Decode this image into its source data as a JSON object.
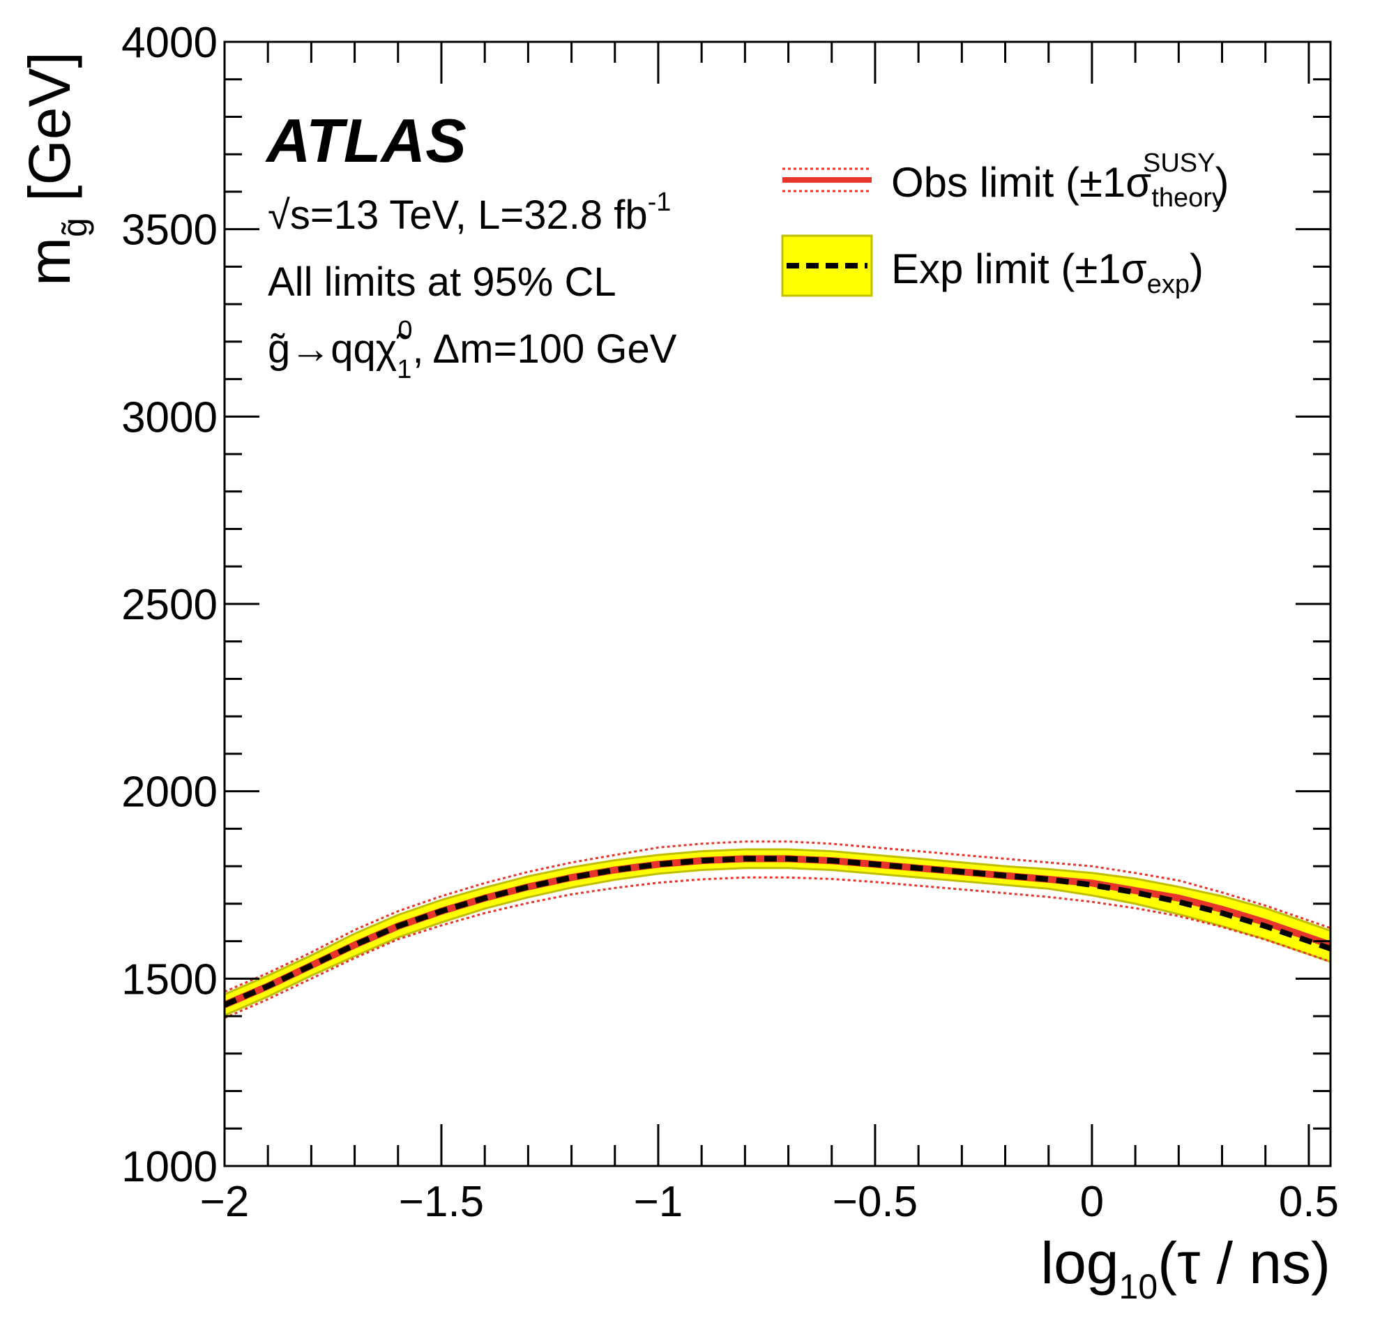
{
  "chart_data": {
    "type": "line",
    "experiment": "ATLAS",
    "xlabel": {
      "main": "log",
      "sub": "10",
      "rest": "(τ / ns)"
    },
    "ylabel": {
      "main": "m",
      "sub": "g̃",
      "rest": " [GeV]"
    },
    "xlim": [
      -2,
      0.55
    ],
    "ylim": [
      1000,
      4000
    ],
    "x_ticks": [
      {
        "value": -2,
        "label": "−2"
      },
      {
        "value": -1.5,
        "label": "−1.5"
      },
      {
        "value": -1,
        "label": "−1"
      },
      {
        "value": -0.5,
        "label": "−0.5"
      },
      {
        "value": 0,
        "label": "0"
      },
      {
        "value": 0.5,
        "label": "0.5"
      }
    ],
    "y_ticks": [
      {
        "value": 1000,
        "label": "1000"
      },
      {
        "value": 1500,
        "label": "1500"
      },
      {
        "value": 2000,
        "label": "2000"
      },
      {
        "value": 2500,
        "label": "2500"
      },
      {
        "value": 3000,
        "label": "3000"
      },
      {
        "value": 3500,
        "label": "3500"
      },
      {
        "value": 4000,
        "label": "4000"
      }
    ],
    "x_minor_step": 0.1,
    "y_minor_step": 100,
    "annotations": {
      "energy_prefix": "√",
      "energy_rest": "s=13 TeV, L=32.8 fb",
      "energy_sup": "-1",
      "cl": "All limits at 95% CL",
      "decay_main": "g̃→qqχ̃",
      "decay_sub": "1",
      "decay_sup": "0",
      "decay_rest": ", Δm=100 GeV"
    },
    "legend": {
      "placement": "top-right",
      "obs": {
        "main": "Obs limit (±1σ",
        "sub": "theory",
        "sup": "SUSY",
        "close": ")"
      },
      "exp": {
        "main": "Exp limit (±1σ",
        "sub": "exp",
        "close": ")"
      }
    },
    "colors": {
      "obs": "#e8352c",
      "obs_band": "#e8352c",
      "exp": "#000000",
      "exp_band": "#ffff00",
      "exp_band_edge": "#bfbf00"
    },
    "x": [
      -2.0,
      -1.9,
      -1.8,
      -1.7,
      -1.6,
      -1.5,
      -1.4,
      -1.3,
      -1.2,
      -1.1,
      -1.0,
      -0.9,
      -0.8,
      -0.7,
      -0.6,
      -0.5,
      -0.4,
      -0.3,
      -0.2,
      -0.1,
      0.0,
      0.1,
      0.2,
      0.3,
      0.4,
      0.5,
      0.55
    ],
    "series": [
      {
        "name": "Obs limit",
        "values": [
          1430,
          1480,
          1535,
          1590,
          1640,
          1680,
          1715,
          1745,
          1770,
          1790,
          1805,
          1815,
          1820,
          1820,
          1815,
          1805,
          1795,
          1785,
          1775,
          1765,
          1755,
          1735,
          1715,
          1685,
          1650,
          1610,
          1590
        ]
      },
      {
        "name": "Obs limit +1σ theory",
        "values": [
          1465,
          1515,
          1570,
          1630,
          1680,
          1720,
          1755,
          1785,
          1810,
          1830,
          1850,
          1860,
          1866,
          1866,
          1860,
          1850,
          1840,
          1830,
          1820,
          1810,
          1800,
          1782,
          1762,
          1730,
          1695,
          1655,
          1635
        ]
      },
      {
        "name": "Obs limit -1σ theory",
        "values": [
          1395,
          1445,
          1500,
          1555,
          1605,
          1642,
          1675,
          1702,
          1725,
          1742,
          1756,
          1765,
          1770,
          1770,
          1766,
          1758,
          1748,
          1738,
          1728,
          1718,
          1705,
          1688,
          1667,
          1638,
          1604,
          1565,
          1545
        ]
      },
      {
        "name": "Exp limit",
        "values": [
          1430,
          1480,
          1535,
          1590,
          1640,
          1680,
          1715,
          1745,
          1770,
          1790,
          1805,
          1815,
          1820,
          1820,
          1815,
          1805,
          1795,
          1785,
          1775,
          1765,
          1750,
          1730,
          1705,
          1675,
          1640,
          1600,
          1580
        ]
      },
      {
        "name": "Exp limit +1σ exp",
        "values": [
          1458,
          1508,
          1562,
          1620,
          1670,
          1710,
          1743,
          1773,
          1797,
          1816,
          1830,
          1840,
          1845,
          1845,
          1840,
          1830,
          1820,
          1810,
          1800,
          1792,
          1782,
          1767,
          1745,
          1720,
          1688,
          1648,
          1628
        ]
      },
      {
        "name": "Exp limit -1σ exp",
        "values": [
          1402,
          1452,
          1508,
          1560,
          1610,
          1650,
          1687,
          1717,
          1743,
          1764,
          1780,
          1790,
          1795,
          1795,
          1790,
          1780,
          1770,
          1760,
          1750,
          1740,
          1722,
          1700,
          1672,
          1640,
          1605,
          1565,
          1545
        ]
      }
    ]
  }
}
